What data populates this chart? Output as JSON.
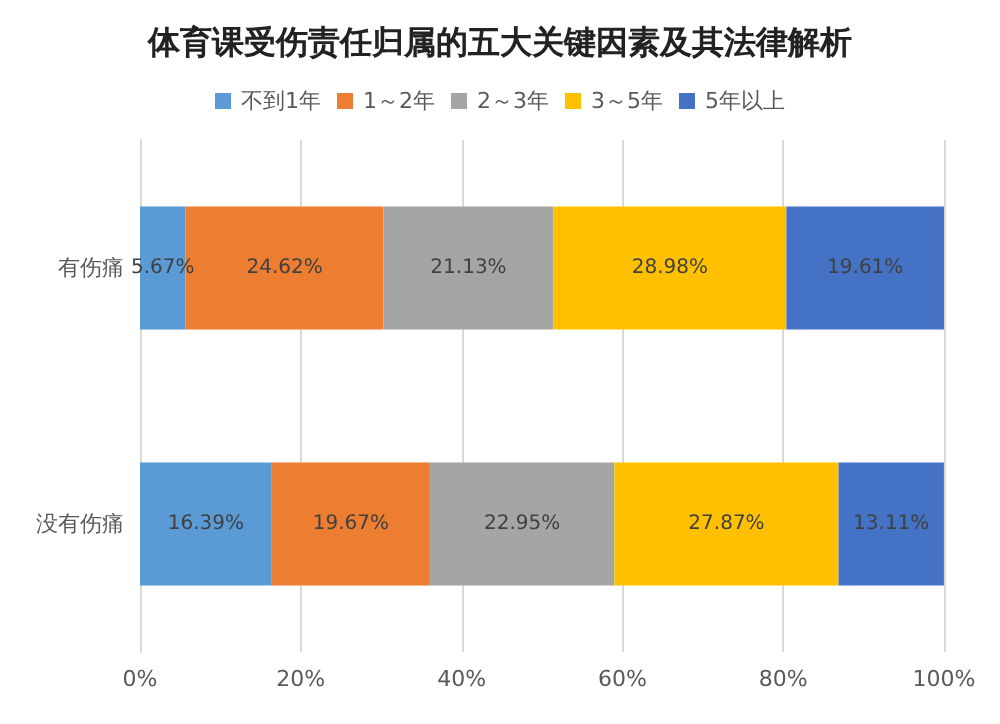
{
  "chart_data": {
    "type": "bar",
    "orientation": "horizontal",
    "stacked": true,
    "title": "体育课受伤责任归属的五大关键因素及其法律解析",
    "categories": [
      "有伤痛",
      "没有伤痛"
    ],
    "series": [
      {
        "name": "不到1年",
        "color": "#5b9bd5",
        "values": [
          5.67,
          16.39
        ],
        "value_labels": [
          "5.67%",
          "16.39%"
        ]
      },
      {
        "name": "1～2年",
        "color": "#ed7d31",
        "values": [
          24.62,
          19.67
        ],
        "value_labels": [
          "24.62%",
          "19.67%"
        ]
      },
      {
        "name": "2～3年",
        "color": "#a5a5a5",
        "values": [
          21.13,
          22.95
        ],
        "value_labels": [
          "21.13%",
          "22.95%"
        ]
      },
      {
        "name": "3～5年",
        "color": "#ffc000",
        "values": [
          28.98,
          27.87
        ],
        "value_labels": [
          "28.98%",
          "27.87%"
        ]
      },
      {
        "name": "5年以上",
        "color": "#4472c4",
        "values": [
          19.61,
          13.11
        ],
        "value_labels": [
          "19.61%",
          "13.11%"
        ]
      }
    ],
    "xlim": [
      0,
      100
    ],
    "xticks": [
      {
        "value": 0,
        "label": "0%"
      },
      {
        "value": 20,
        "label": "20%"
      },
      {
        "value": 40,
        "label": "40%"
      },
      {
        "value": 60,
        "label": "60%"
      },
      {
        "value": 80,
        "label": "80%"
      },
      {
        "value": 100,
        "label": "100%"
      }
    ],
    "grid": "x",
    "legend": "top"
  }
}
